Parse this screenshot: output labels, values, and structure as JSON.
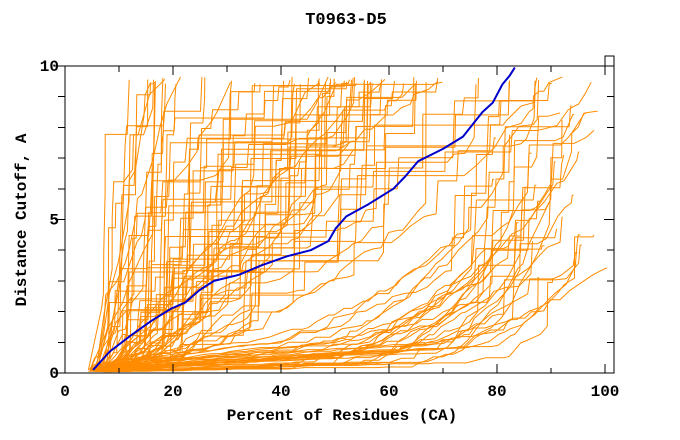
{
  "chart_data": {
    "type": "line",
    "title": "T0963-D5",
    "xlabel": "Percent of Residues (CA)",
    "ylabel": "Distance Cutoff, A",
    "xlim": [
      0,
      101.8
    ],
    "ylim": [
      0,
      10
    ],
    "x_major_ticks": [
      0,
      20,
      40,
      60,
      80,
      100
    ],
    "x_minor_ticks": [
      10,
      30,
      50,
      70,
      90
    ],
    "y_major_ticks": [
      0,
      5,
      10
    ],
    "y_minor_ticks": [
      1,
      2,
      3,
      4,
      6,
      7,
      8,
      9
    ],
    "grid": "off",
    "legend": "none",
    "frame_color": "#000000",
    "background_color": "#ffffff",
    "highlight_series": {
      "name": "highlighted-model-gdt-curve",
      "color": "#0000cc",
      "stroke_width": 2,
      "points": [
        [
          5.2,
          0.1
        ],
        [
          8.3,
          0.7
        ],
        [
          12.0,
          1.2
        ],
        [
          16.0,
          1.7
        ],
        [
          19.7,
          2.1
        ],
        [
          22.3,
          2.3
        ],
        [
          24.9,
          2.7
        ],
        [
          27.6,
          3.0
        ],
        [
          32.2,
          3.2
        ],
        [
          36.3,
          3.5
        ],
        [
          41.1,
          3.8
        ],
        [
          45.5,
          4.0
        ],
        [
          48.8,
          4.3
        ],
        [
          50.1,
          4.7
        ],
        [
          52.1,
          5.1
        ],
        [
          56.2,
          5.5
        ],
        [
          60.8,
          6.0
        ],
        [
          63.0,
          6.4
        ],
        [
          65.4,
          6.9
        ],
        [
          70.0,
          7.3
        ],
        [
          73.7,
          7.7
        ],
        [
          77.3,
          8.5
        ],
        [
          79.2,
          8.8
        ],
        [
          81.0,
          9.4
        ],
        [
          82.4,
          9.7
        ],
        [
          83.3,
          9.95
        ]
      ]
    },
    "ensemble": {
      "name": "other-model-gdt-curves",
      "color": "#ff8c00",
      "stroke_width": 1,
      "start_percent_range": [
        4.2,
        7.5
      ],
      "top_cutoff_range": [
        9.4,
        9.65
      ],
      "seed": 1337,
      "families": [
        {
          "kind": "rise",
          "n": 14,
          "pe": [
            15,
            42
          ],
          "gamma": [
            0.8,
            1.3
          ],
          "vert": 0.38
        },
        {
          "kind": "rise",
          "n": 36,
          "pe": [
            42,
            88
          ],
          "gamma": [
            0.8,
            1.7
          ],
          "vert": 0.18
        },
        {
          "kind": "rise",
          "n": 18,
          "pe": [
            88,
            101
          ],
          "gamma": [
            1.1,
            2.0
          ],
          "vert": 0.15
        },
        {
          "kind": "flat",
          "n": 26,
          "knee": [
            30,
            70
          ],
          "pe": [
            90,
            100.5
          ],
          "dLow": [
            0.15,
            1.0
          ],
          "dEnd": [
            4.0,
            9.55
          ]
        },
        {
          "kind": "flat",
          "n": 6,
          "knee": [
            55,
            80
          ],
          "pe": [
            97,
            100.5
          ],
          "dLow": [
            0.3,
            1.1
          ],
          "dEnd": [
            2.5,
            4.5
          ]
        }
      ]
    }
  }
}
